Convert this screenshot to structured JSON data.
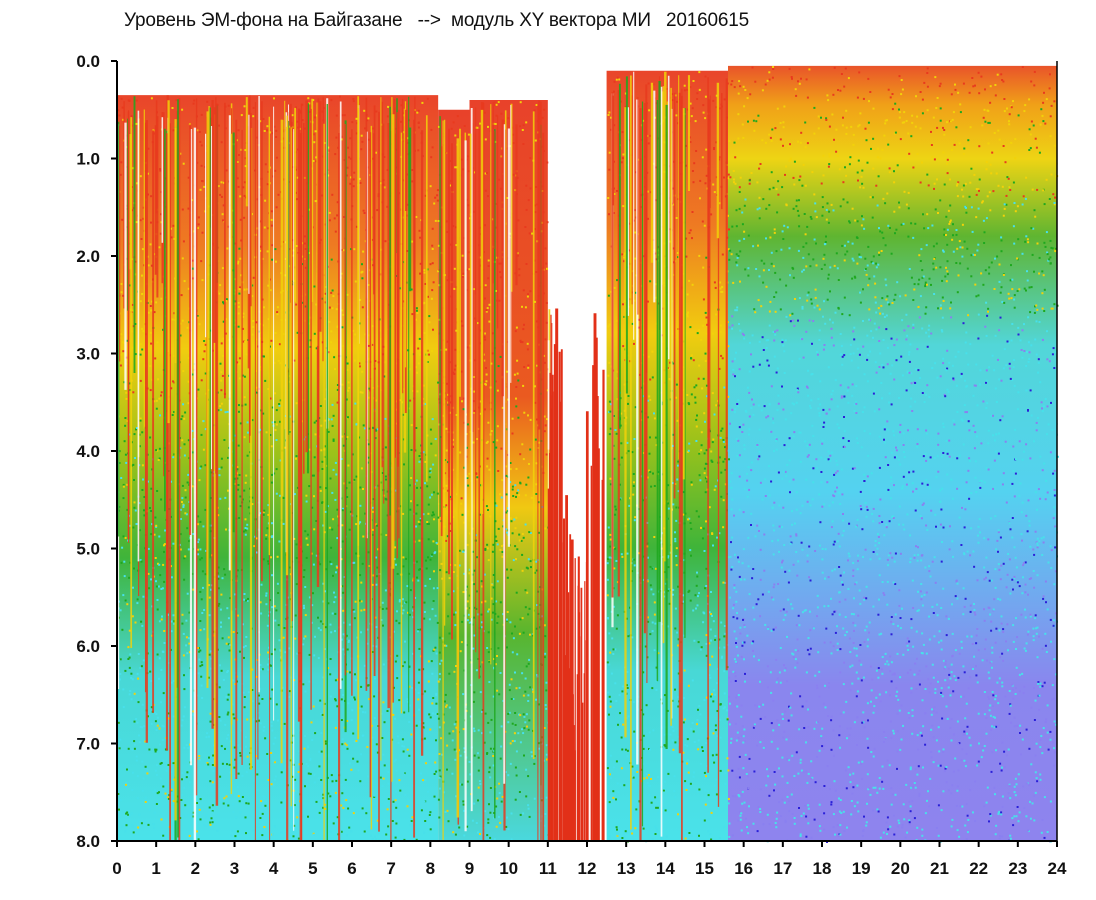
{
  "chart_data": {
    "type": "heatmap",
    "title": "Уровень ЭМ-фона на Байгазане   -->  модуль XY вектора МИ   20160615",
    "xlabel": "",
    "ylabel": "",
    "xlim": [
      0,
      24
    ],
    "ylim": [
      0,
      8
    ],
    "y_inverted": true,
    "grid": false,
    "x_tick_labels": [
      "0",
      "1",
      "2",
      "3",
      "4",
      "5",
      "6",
      "7",
      "8",
      "9",
      "10",
      "11",
      "12",
      "13",
      "14",
      "15",
      "16",
      "17",
      "18",
      "19",
      "20",
      "21",
      "22",
      "23",
      "24"
    ],
    "y_tick_labels": [
      "0.0",
      "1.0",
      "2.0",
      "3.0",
      "4.0",
      "5.0",
      "6.0",
      "7.0",
      "8.0"
    ],
    "color_scale": [
      "#e83a1e",
      "#f2d20a",
      "#1ea81e",
      "#48e0ea",
      "#8a80f0",
      "#2b20d8"
    ],
    "density_bands": [
      {
        "x": [
          0.0,
          8.2
        ],
        "top": 0.35,
        "red_to": 1.9,
        "yellow_to": 3.5,
        "green_to": 5.3
      },
      {
        "x": [
          8.2,
          9.0
        ],
        "top": 0.5,
        "red_to": 3.5,
        "yellow_to": 5.0,
        "green_to": 7.0
      },
      {
        "x": [
          9.0,
          11.0
        ],
        "top": 0.4,
        "red_to": 3.0,
        "yellow_to": 4.3,
        "green_to": 6.2
      },
      {
        "x": [
          11.0,
          12.5
        ],
        "top": 2.5,
        "red_to": 8.0,
        "yellow_to": 8.0,
        "green_to": 8.0
      },
      {
        "x": [
          12.5,
          15.6
        ],
        "top": 0.1,
        "red_to": 2.0,
        "yellow_to": 3.3,
        "green_to": 5.0
      },
      {
        "x": [
          15.6,
          24.0
        ],
        "top": 0.05,
        "red_to": 0.4,
        "yellow_to": 1.4,
        "green_to": 2.6
      }
    ],
    "gap": {
      "x": [
        11.4,
        12.0
      ],
      "floor": 4.3
    }
  }
}
